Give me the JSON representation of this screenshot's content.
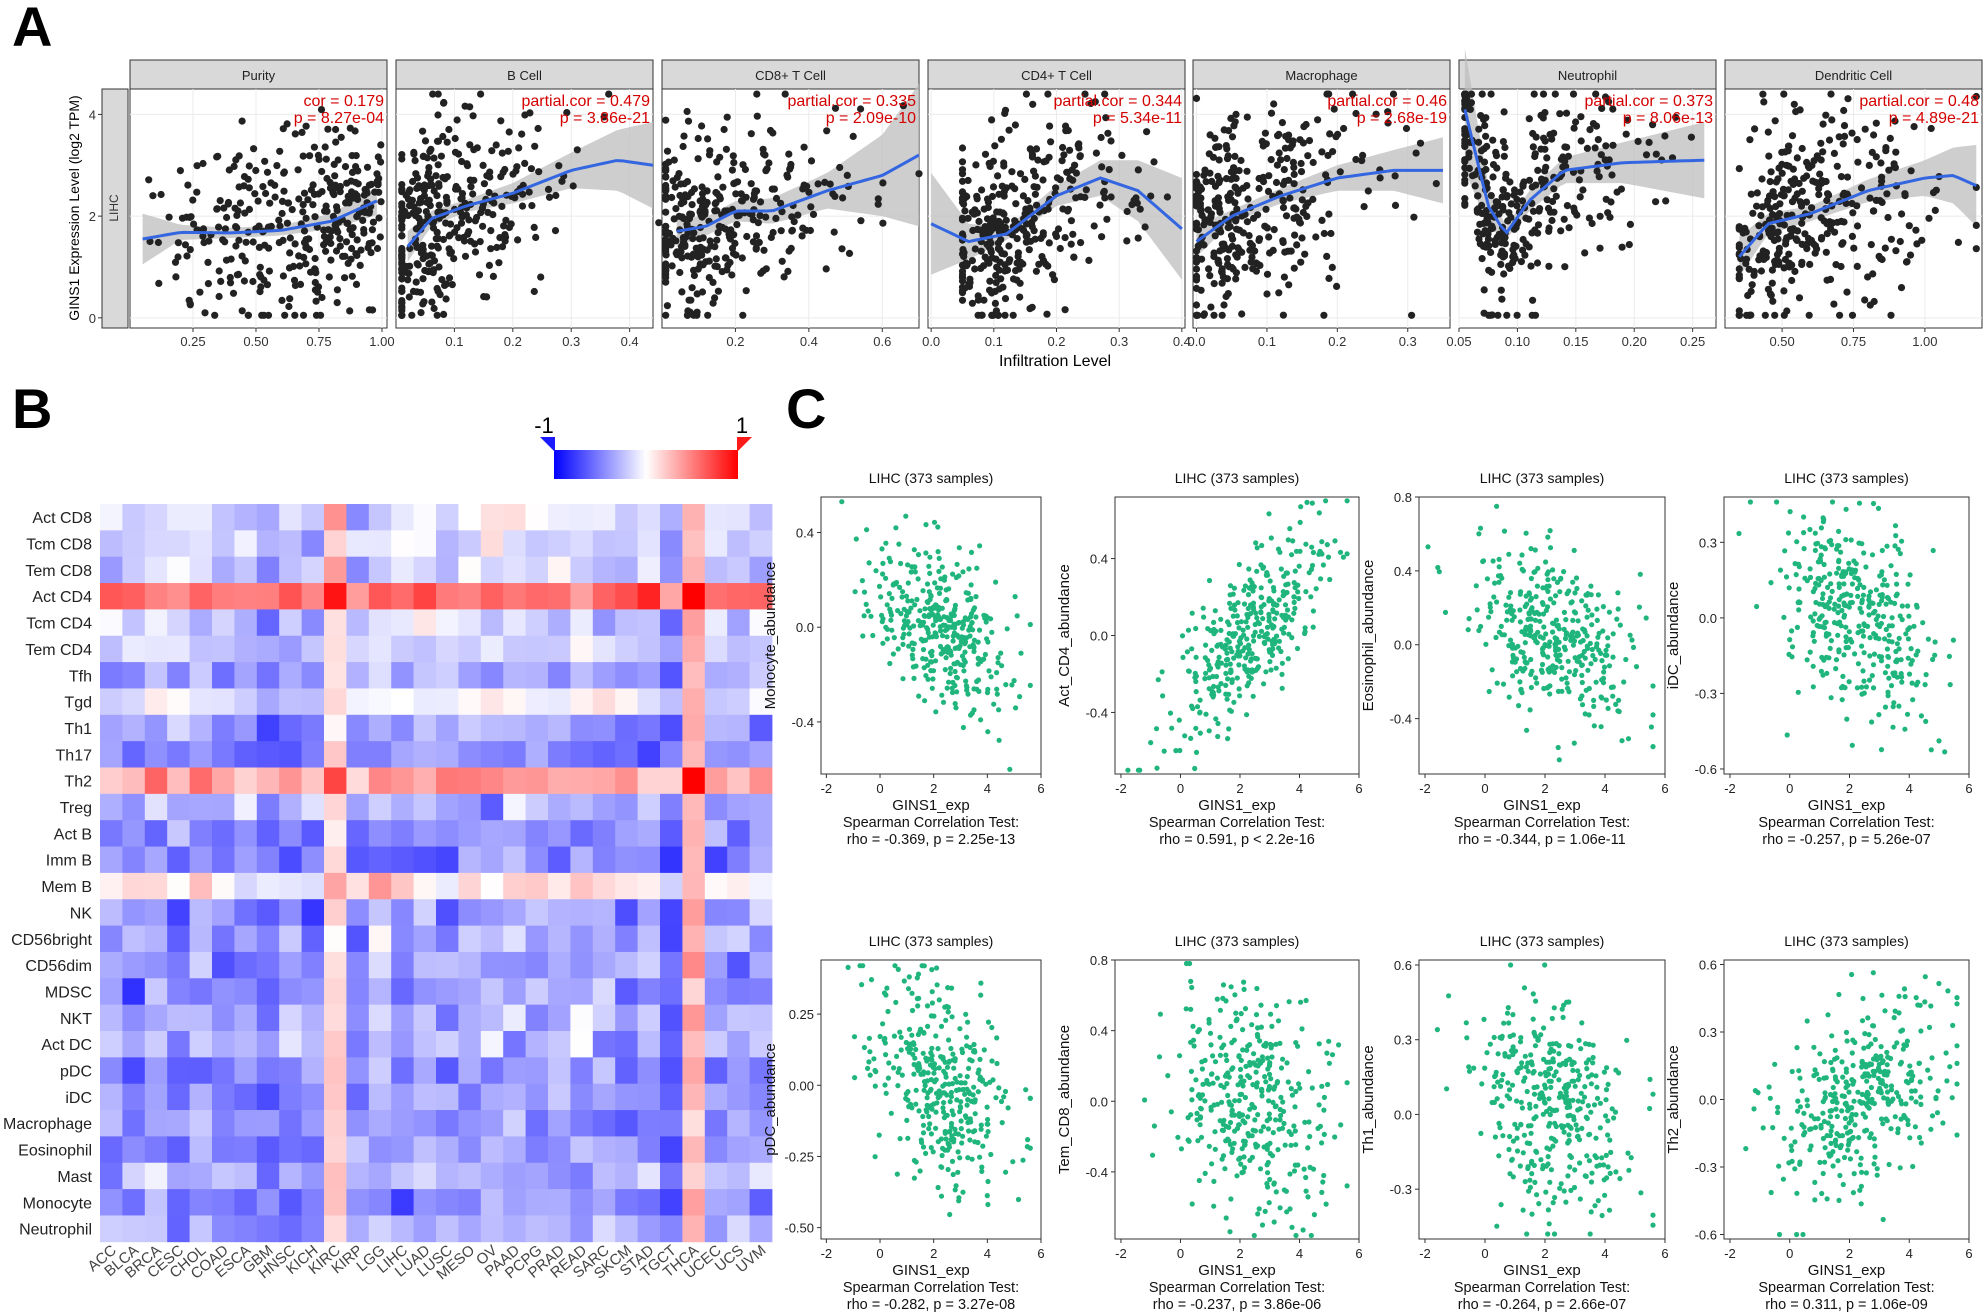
{
  "figure": {
    "panel_labels": [
      "A",
      "B",
      "C"
    ]
  },
  "chart_data": [
    {
      "panel": "A",
      "type": "scatter",
      "smooth": "loess",
      "row_label": "LIHC",
      "ylabel": "GINS1 Expression Level (log2 TPM)",
      "xlabel": "Infiltration Level",
      "ylim": [
        -0.2,
        4.5
      ],
      "yticks": [
        0,
        2,
        4
      ],
      "facets": [
        {
          "name": "Purity",
          "stat": "cor = 0.179",
          "p": "p = 8.27e-04",
          "xlim": [
            0.0,
            1.02
          ],
          "xticks": [
            "0.25",
            "0.50",
            "0.75",
            "1.00"
          ],
          "xtick_values": [
            0.25,
            0.5,
            0.75,
            1.0
          ],
          "trend": [
            [
              0.05,
              1.55
            ],
            [
              0.2,
              1.68
            ],
            [
              0.4,
              1.67
            ],
            [
              0.6,
              1.72
            ],
            [
              0.8,
              1.9
            ],
            [
              0.98,
              2.3
            ]
          ],
          "band": [
            0.5,
            0.15,
            0.1,
            0.1,
            0.15,
            0.28
          ],
          "xdist": [
            0.05,
            1.0,
            0.72
          ]
        },
        {
          "name": "B Cell",
          "stat": "partial.cor = 0.479",
          "p": "p = 3.86e-21",
          "xlim": [
            0.0,
            0.44
          ],
          "xticks": [
            "0.1",
            "0.2",
            "0.3",
            "0.4"
          ],
          "xtick_values": [
            0.1,
            0.2,
            0.3,
            0.4
          ],
          "trend": [
            [
              0.02,
              1.4
            ],
            [
              0.06,
              1.95
            ],
            [
              0.12,
              2.2
            ],
            [
              0.2,
              2.45
            ],
            [
              0.3,
              2.9
            ],
            [
              0.38,
              3.1
            ],
            [
              0.44,
              3.0
            ]
          ],
          "band": [
            0.3,
            0.15,
            0.12,
            0.2,
            0.35,
            0.6,
            0.85
          ],
          "xdist": [
            0.01,
            0.45,
            0.08
          ]
        },
        {
          "name": "CD8+ T Cell",
          "stat": "partial.cor = 0.335",
          "p": "p = 2.09e-10",
          "xlim": [
            0.0,
            0.7
          ],
          "xticks": [
            "0.2",
            "0.4",
            "0.6"
          ],
          "xtick_values": [
            0.2,
            0.4,
            0.6
          ],
          "trend": [
            [
              0.04,
              1.7
            ],
            [
              0.12,
              1.8
            ],
            [
              0.2,
              2.1
            ],
            [
              0.3,
              2.1
            ],
            [
              0.45,
              2.5
            ],
            [
              0.6,
              2.8
            ],
            [
              0.7,
              3.2
            ]
          ],
          "band": [
            0.3,
            0.18,
            0.2,
            0.25,
            0.35,
            0.8,
            1.4
          ],
          "xdist": [
            0.01,
            0.7,
            0.12
          ]
        },
        {
          "name": "CD4+ T Cell",
          "stat": "partial.cor = 0.344",
          "p": "p = 5.34e-11",
          "xlim": [
            -0.005,
            0.405
          ],
          "xticks": [
            "0.0",
            "0.1",
            "0.2",
            "0.3",
            "0.4"
          ],
          "xtick_values": [
            0.0,
            0.1,
            0.2,
            0.3,
            0.4
          ],
          "trend": [
            [
              0.0,
              1.85
            ],
            [
              0.06,
              1.5
            ],
            [
              0.12,
              1.65
            ],
            [
              0.2,
              2.4
            ],
            [
              0.27,
              2.75
            ],
            [
              0.33,
              2.5
            ],
            [
              0.4,
              1.75
            ]
          ],
          "band": [
            1.0,
            0.35,
            0.12,
            0.2,
            0.35,
            0.6,
            1.0
          ],
          "xdist": [
            0.05,
            0.4,
            0.12
          ]
        },
        {
          "name": "Macrophage",
          "stat": "partial.cor = 0.46",
          "p": "p = 2.68e-19",
          "xlim": [
            -0.005,
            0.36
          ],
          "xticks": [
            "0.0",
            "0.1",
            "0.2",
            "0.3"
          ],
          "xtick_values": [
            0.0,
            0.1,
            0.2,
            0.3
          ],
          "trend": [
            [
              0.0,
              1.5
            ],
            [
              0.05,
              2.0
            ],
            [
              0.12,
              2.4
            ],
            [
              0.2,
              2.75
            ],
            [
              0.28,
              2.9
            ],
            [
              0.35,
              2.9
            ]
          ],
          "band": [
            0.3,
            0.12,
            0.15,
            0.25,
            0.4,
            0.65
          ],
          "xdist": [
            0.0,
            0.35,
            0.06
          ]
        },
        {
          "name": "Neutrophil",
          "stat": "partial.cor = 0.373",
          "p": "p = 8.06e-13",
          "xlim": [
            0.05,
            0.27
          ],
          "xticks": [
            "0.05",
            "0.10",
            "0.15",
            "0.20",
            "0.25"
          ],
          "xtick_values": [
            0.05,
            0.1,
            0.15,
            0.2,
            0.25
          ],
          "trend": [
            [
              0.055,
              4.1
            ],
            [
              0.075,
              2.2
            ],
            [
              0.09,
              1.65
            ],
            [
              0.11,
              2.3
            ],
            [
              0.14,
              2.9
            ],
            [
              0.19,
              3.05
            ],
            [
              0.26,
              3.1
            ]
          ],
          "band": [
            1.2,
            0.4,
            0.12,
            0.2,
            0.25,
            0.4,
            0.75
          ],
          "xdist": [
            0.055,
            0.26,
            0.09
          ]
        },
        {
          "name": "Dendritic Cell",
          "stat": "partial.cor = 0.48",
          "p": "p = 4.89e-21",
          "xlim": [
            0.3,
            1.2
          ],
          "xticks": [
            "0.50",
            "0.75",
            "1.00"
          ],
          "xtick_values": [
            0.5,
            0.75,
            1.0
          ],
          "trend": [
            [
              0.35,
              1.2
            ],
            [
              0.45,
              1.85
            ],
            [
              0.6,
              2.05
            ],
            [
              0.8,
              2.5
            ],
            [
              1.0,
              2.75
            ],
            [
              1.1,
              2.8
            ],
            [
              1.18,
              2.6
            ]
          ],
          "band": [
            0.4,
            0.2,
            0.15,
            0.22,
            0.35,
            0.55,
            0.8
          ],
          "xdist": [
            0.35,
            1.18,
            0.55
          ]
        }
      ]
    },
    {
      "panel": "B",
      "type": "heatmap",
      "rows": [
        "Act CD8",
        "Tcm CD8",
        "Tem CD8",
        "Act CD4",
        "Tcm CD4",
        "Tem CD4",
        "Tfh",
        "Tgd",
        "Th1",
        "Th17",
        "Th2",
        "Treg",
        "Act B",
        "Imm B",
        "Mem B",
        "NK",
        "CD56bright",
        "CD56dim",
        "MDSC",
        "NKT",
        "Act DC",
        "pDC",
        "iDC",
        "Macrophage",
        "Eosinophil",
        "Mast",
        "Monocyte",
        "Neutrophil"
      ],
      "columns": [
        "ACC",
        "BLCA",
        "BRCA",
        "CESC",
        "CHOL",
        "COAD",
        "ESCA",
        "GBM",
        "HNSC",
        "KICH",
        "KIRC",
        "KIRP",
        "LGG",
        "LIHC",
        "LUAD",
        "LUSC",
        "MESO",
        "OV",
        "PAAD",
        "PCPG",
        "PRAD",
        "READ",
        "SARC",
        "SKCM",
        "STAD",
        "TGCT",
        "THCA",
        "UCEC",
        "UCS",
        "UVM"
      ],
      "scale_min": "-1",
      "scale_max": "1",
      "row_bias": [
        -0.1,
        -0.12,
        -0.2,
        0.62,
        -0.22,
        -0.2,
        -0.32,
        -0.05,
        -0.4,
        -0.45,
        0.38,
        -0.28,
        -0.4,
        -0.45,
        0.1,
        -0.42,
        -0.32,
        -0.35,
        -0.38,
        -0.3,
        -0.3,
        -0.45,
        -0.42,
        -0.38,
        -0.4,
        -0.28,
        -0.42,
        -0.35
      ],
      "col_bias": [
        0.0,
        -0.05,
        0.05,
        -0.05,
        0.05,
        -0.1,
        -0.05,
        -0.2,
        -0.05,
        -0.1,
        0.3,
        -0.05,
        0.05,
        0.0,
        0.05,
        -0.05,
        0.0,
        0.05,
        0.05,
        0.0,
        0.0,
        0.05,
        0.0,
        -0.05,
        0.0,
        -0.25,
        0.45,
        0.0,
        -0.05,
        0.0
      ]
    },
    {
      "panel": "C",
      "type": "scatter",
      "xlabel": "GINS1_exp",
      "xlim": [
        -2.2,
        6.0
      ],
      "xticks": [
        -2,
        0,
        2,
        4,
        6
      ],
      "test_label": "Spearman Correlation Test:",
      "plots": [
        {
          "title": "LIHC (373 samples)",
          "ylabel": "Monocyte_abundance",
          "stat": "rho = -0.369, p = 2.25e-13",
          "ylim": [
            -0.62,
            0.55
          ],
          "yticks": [
            -0.4,
            0.0,
            0.4
          ],
          "ytick_labels": [
            "-0.4",
            "0.0",
            "0.4"
          ],
          "center": 0.0,
          "slope": -0.065,
          "spread": 0.17
        },
        {
          "title": "LIHC (373 samples)",
          "ylabel": "Act_CD4_abundance",
          "stat": "rho = 0.591, p < 2.2e-16",
          "ylim": [
            -0.72,
            0.72
          ],
          "yticks": [
            -0.4,
            0.0,
            0.4
          ],
          "ytick_labels": [
            "-0.4",
            "0.0",
            "0.4"
          ],
          "center": 0.0,
          "slope": 0.16,
          "spread": 0.2
        },
        {
          "title": "LIHC (373 samples)",
          "ylabel": "Eosinophil_abundance",
          "stat": "rho = -0.344, p = 1.06e-11",
          "ylim": [
            -0.7,
            0.8
          ],
          "yticks": [
            -0.4,
            0.0,
            0.4,
            0.8
          ],
          "ytick_labels": [
            "-0.4",
            "0.0",
            "0.4",
            "0.8"
          ],
          "center": 0.05,
          "slope": -0.075,
          "spread": 0.22
        },
        {
          "title": "LIHC (373 samples)",
          "ylabel": "iDC_abundance",
          "stat": "rho = -0.257, p = 5.26e-07",
          "ylim": [
            -0.62,
            0.48
          ],
          "yticks": [
            -0.6,
            -0.3,
            0.0,
            0.3
          ],
          "ytick_labels": [
            "-0.6",
            "-0.3",
            "0.0",
            "0.3"
          ],
          "center": 0.0,
          "slope": -0.05,
          "spread": 0.2
        },
        {
          "title": "LIHC (373 samples)",
          "ylabel": "pDC_abundance",
          "stat": "rho = -0.282, p = 3.27e-08",
          "ylim": [
            -0.54,
            0.44
          ],
          "yticks": [
            -0.5,
            -0.25,
            0.0,
            0.25
          ],
          "ytick_labels": [
            "-0.50",
            "-0.25",
            "0.00",
            "0.25"
          ],
          "center": 0.0,
          "slope": -0.045,
          "spread": 0.17
        },
        {
          "title": "LIHC (373 samples)",
          "ylabel": "Tem_CD8_abundance",
          "stat": "rho = -0.237, p = 3.86e-06",
          "ylim": [
            -0.78,
            0.8
          ],
          "yticks": [
            -0.4,
            0.0,
            0.4,
            0.8
          ],
          "ytick_labels": [
            "-0.4",
            "0.0",
            "0.4",
            "0.8"
          ],
          "center": 0.0,
          "slope": -0.06,
          "spread": 0.3
        },
        {
          "title": "LIHC (373 samples)",
          "ylabel": "Th1_abundance",
          "stat": "rho = -0.264, p = 2.66e-07",
          "ylim": [
            -0.5,
            0.62
          ],
          "yticks": [
            -0.3,
            0.0,
            0.3,
            0.6
          ],
          "ytick_labels": [
            "-0.3",
            "0.0",
            "0.3",
            "0.6"
          ],
          "center": 0.05,
          "slope": -0.05,
          "spread": 0.21
        },
        {
          "title": "LIHC (373 samples)",
          "ylabel": "Th2_abundance",
          "stat": "rho = 0.311, p = 1.06e-09",
          "ylim": [
            -0.62,
            0.62
          ],
          "yticks": [
            -0.6,
            -0.3,
            0.0,
            0.3,
            0.6
          ],
          "ytick_labels": [
            "-0.6",
            "-0.3",
            "0.0",
            "0.3",
            "0.6"
          ],
          "center": 0.0,
          "slope": 0.06,
          "spread": 0.2
        }
      ]
    }
  ]
}
